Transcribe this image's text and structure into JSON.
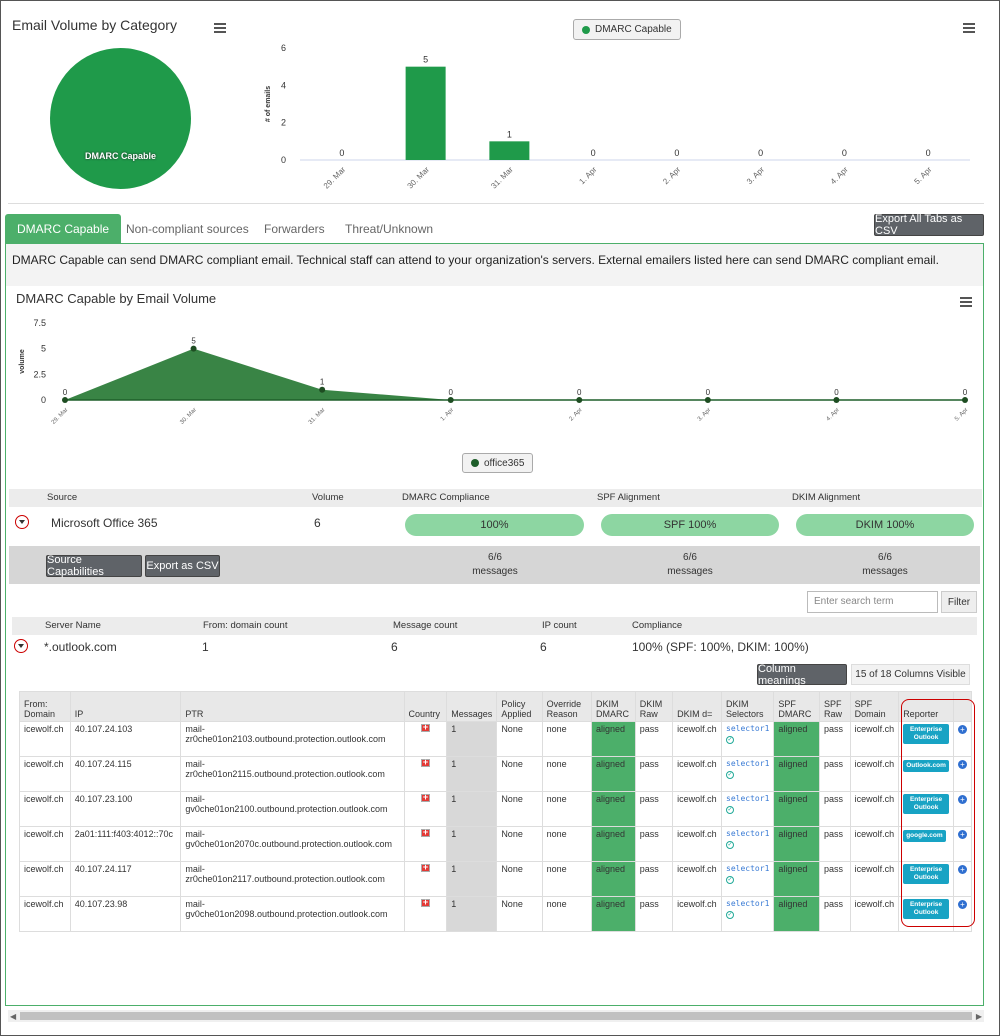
{
  "top": {
    "title": "Email Volume by Category",
    "pie_label": "DMARC Capable",
    "legend": "DMARC Capable"
  },
  "chart_data": [
    {
      "type": "bar",
      "ylabel": "# of emails",
      "categories": [
        "29. Mar",
        "30. Mar",
        "31. Mar",
        "1. Apr",
        "2. Apr",
        "3. Apr",
        "4. Apr",
        "5. Apr"
      ],
      "values": [
        0,
        5,
        1,
        0,
        0,
        0,
        0,
        0
      ],
      "yticks": [
        0,
        2,
        4,
        6
      ],
      "ylim": [
        0,
        6
      ],
      "series": [
        {
          "name": "DMARC Capable",
          "values": [
            0,
            5,
            1,
            0,
            0,
            0,
            0,
            0
          ],
          "color": "#1f9a4a"
        }
      ]
    },
    {
      "type": "area",
      "title": "DMARC Capable by Email Volume",
      "ylabel": "volume",
      "categories": [
        "29. Mar",
        "30. Mar",
        "31. Mar",
        "1. Apr",
        "2. Apr",
        "3. Apr",
        "4. Apr",
        "5. Apr"
      ],
      "yticks": [
        0,
        2.5,
        5,
        7.5
      ],
      "ylim": [
        0,
        7.5
      ],
      "series": [
        {
          "name": "office365",
          "values": [
            0,
            5,
            1,
            0,
            0,
            0,
            0,
            0
          ],
          "color": "#2e7d3b"
        }
      ]
    }
  ],
  "tabs": [
    "DMARC Capable",
    "Non-compliant sources",
    "Forwarders",
    "Threat/Unknown"
  ],
  "export_all": "Export All Tabs as CSV",
  "description": "DMARC Capable can send DMARC compliant email. Technical staff can attend to your organization's servers. External emailers listed here can send DMARC compliant email.",
  "source_table": {
    "headers": [
      "Source",
      "Volume",
      "DMARC Compliance",
      "SPF Alignment",
      "DKIM Alignment"
    ],
    "row": {
      "source": "Microsoft Office 365",
      "volume": "6",
      "dmarc": "100%",
      "spf": "SPF 100%",
      "dkim": "DKIM 100%"
    },
    "buttons": {
      "capabilities": "Source Capabilities",
      "export": "Export as CSV"
    },
    "messages": [
      {
        "count": "6/6",
        "label": "messages"
      },
      {
        "count": "6/6",
        "label": "messages"
      },
      {
        "count": "6/6",
        "label": "messages"
      }
    ]
  },
  "search_placeholder": "Enter search term",
  "filter_label": "Filter",
  "server_table": {
    "headers": [
      "Server Name",
      "From: domain count",
      "Message count",
      "IP count",
      "Compliance"
    ],
    "row": {
      "name": "*.outlook.com",
      "domains": "1",
      "messages": "6",
      "ips": "6",
      "compliance": "100% (SPF: 100%, DKIM: 100%)"
    }
  },
  "column_meanings": "Column meanings",
  "columns_visible": "15 of 18 Columns Visible",
  "detail": {
    "headers": [
      "From: Domain",
      "IP",
      "PTR",
      "Country",
      "Messages",
      "Policy Applied",
      "Override Reason",
      "DKIM DMARC",
      "DKIM Raw",
      "DKIM d=",
      "DKIM Selectors",
      "SPF DMARC",
      "SPF Raw",
      "SPF Domain",
      "Reporter"
    ],
    "rows": [
      {
        "domain": "icewolf.ch",
        "ip": "40.107.24.103",
        "ptr": "mail-zr0che01on2103.outbound.protection.outlook.com",
        "messages": "1",
        "policy": "None",
        "override": "none",
        "dkim_dmarc": "aligned",
        "dkim_raw": "pass",
        "dkim_d": "icewolf.ch",
        "selector": "selector1",
        "spf_dmarc": "aligned",
        "spf_raw": "pass",
        "spf_domain": "icewolf.ch",
        "reporter": "Enterprise Outlook"
      },
      {
        "domain": "icewolf.ch",
        "ip": "40.107.24.115",
        "ptr": "mail-zr0che01on2115.outbound.protection.outlook.com",
        "messages": "1",
        "policy": "None",
        "override": "none",
        "dkim_dmarc": "aligned",
        "dkim_raw": "pass",
        "dkim_d": "icewolf.ch",
        "selector": "selector1",
        "spf_dmarc": "aligned",
        "spf_raw": "pass",
        "spf_domain": "icewolf.ch",
        "reporter": "Outlook.com"
      },
      {
        "domain": "icewolf.ch",
        "ip": "40.107.23.100",
        "ptr": "mail-gv0che01on2100.outbound.protection.outlook.com",
        "messages": "1",
        "policy": "None",
        "override": "none",
        "dkim_dmarc": "aligned",
        "dkim_raw": "pass",
        "dkim_d": "icewolf.ch",
        "selector": "selector1",
        "spf_dmarc": "aligned",
        "spf_raw": "pass",
        "spf_domain": "icewolf.ch",
        "reporter": "Enterprise Outlook"
      },
      {
        "domain": "icewolf.ch",
        "ip": "2a01:111:f403:4012::70c",
        "ptr": "mail-gv0che01on2070c.outbound.protection.outlook.com",
        "messages": "1",
        "policy": "None",
        "override": "none",
        "dkim_dmarc": "aligned",
        "dkim_raw": "pass",
        "dkim_d": "icewolf.ch",
        "selector": "selector1",
        "spf_dmarc": "aligned",
        "spf_raw": "pass",
        "spf_domain": "icewolf.ch",
        "reporter": "google.com"
      },
      {
        "domain": "icewolf.ch",
        "ip": "40.107.24.117",
        "ptr": "mail-zr0che01on2117.outbound.protection.outlook.com",
        "messages": "1",
        "policy": "None",
        "override": "none",
        "dkim_dmarc": "aligned",
        "dkim_raw": "pass",
        "dkim_d": "icewolf.ch",
        "selector": "selector1",
        "spf_dmarc": "aligned",
        "spf_raw": "pass",
        "spf_domain": "icewolf.ch",
        "reporter": "Enterprise Outlook"
      },
      {
        "domain": "icewolf.ch",
        "ip": "40.107.23.98",
        "ptr": "mail-gv0che01on2098.outbound.protection.outlook.com",
        "messages": "1",
        "policy": "None",
        "override": "none",
        "dkim_dmarc": "aligned",
        "dkim_raw": "pass",
        "dkim_d": "icewolf.ch",
        "selector": "selector1",
        "spf_dmarc": "aligned",
        "spf_raw": "pass",
        "spf_domain": "icewolf.ch",
        "reporter": "Enterprise Outlook"
      }
    ]
  },
  "colors": {
    "green": "#4caf6a",
    "dark_green": "#1f9a4a",
    "pill": "#8dd6a2",
    "reporter": "#18a3c4",
    "highlight": "#cc0000"
  },
  "icons": {
    "menu": "hamburger-icon",
    "expand": "chevron-down-icon",
    "flag": "swiss-flag-icon",
    "check": "check-circle-icon",
    "more": "plus-circle-icon"
  }
}
